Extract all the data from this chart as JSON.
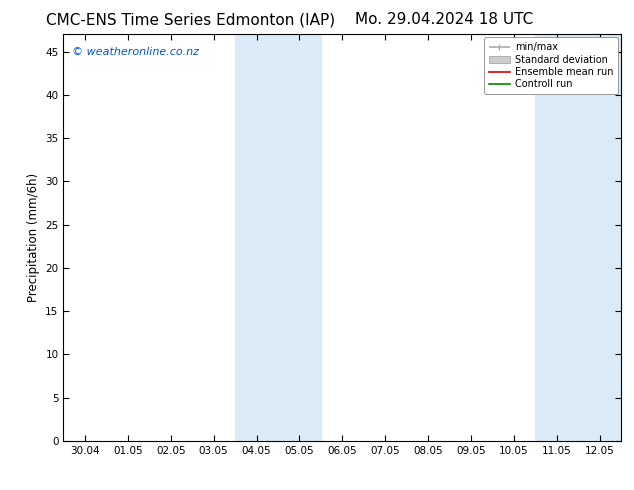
{
  "title_left": "CMC-ENS Time Series Edmonton (IAP)",
  "title_right": "Mo. 29.04.2024 18 UTC",
  "ylabel": "Precipitation (mm/6h)",
  "xlabel_ticks": [
    "30.04",
    "01.05",
    "02.05",
    "03.05",
    "04.05",
    "05.05",
    "06.05",
    "07.05",
    "08.05",
    "09.05",
    "10.05",
    "11.05",
    "12.05"
  ],
  "xlim": [
    -0.5,
    12.5
  ],
  "ylim": [
    0,
    47
  ],
  "yticks": [
    0,
    5,
    10,
    15,
    20,
    25,
    30,
    35,
    40,
    45
  ],
  "shaded_bands": [
    {
      "x_start": 3.5,
      "x_end": 5.5
    },
    {
      "x_start": 10.5,
      "x_end": 12.5
    }
  ],
  "shaded_color": "#daeaf7",
  "watermark_text": "© weatheronline.co.nz",
  "watermark_color": "#0055cc",
  "legend_items": [
    {
      "label": "min/max",
      "color": "#aaaaaa",
      "lw": 1.2
    },
    {
      "label": "Standard deviation",
      "color": "#cccccc",
      "lw": 5
    },
    {
      "label": "Ensemble mean run",
      "color": "#dd0000",
      "lw": 1.2
    },
    {
      "label": "Controll run",
      "color": "#008800",
      "lw": 1.2
    }
  ],
  "bg_color": "#ffffff",
  "title_fontsize": 11,
  "tick_fontsize": 7.5,
  "ylabel_fontsize": 8.5,
  "watermark_fontsize": 8
}
